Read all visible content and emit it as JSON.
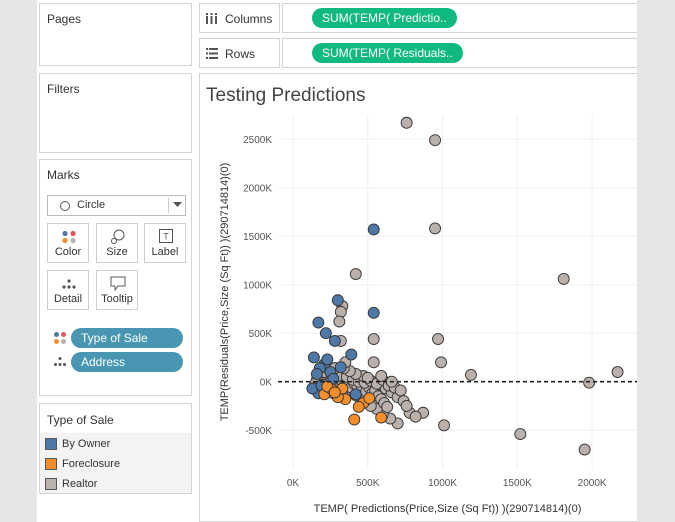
{
  "panels": {
    "pages": "Pages",
    "filters": "Filters",
    "marks": "Marks"
  },
  "shelves": {
    "columns_label": "Columns",
    "columns_pill": "SUM(TEMP( Predictio..",
    "rows_label": "Rows",
    "rows_pill": "SUM(TEMP( Residuals.."
  },
  "marks_card": {
    "mark_type": "Circle",
    "buttons": {
      "color": "Color",
      "size": "Size",
      "label": "Label",
      "detail": "Detail",
      "tooltip": "Tooltip"
    },
    "fields": {
      "color_field": "Type of Sale",
      "detail_field": "Address"
    }
  },
  "legend": {
    "title": "Type of Sale",
    "items": [
      {
        "label": "By Owner",
        "color": "#4e79a7"
      },
      {
        "label": "Foreclosure",
        "color": "#f28e2b"
      },
      {
        "label": "Realtor",
        "color": "#bab0ac"
      }
    ]
  },
  "chart_data": {
    "type": "scatter",
    "title": "Testing Predictions",
    "xlabel": "TEMP( Predictions(Price,Size (Sq Ft)) )(290714814)(0)",
    "ylabel": "TEMP(Residuals(Price,Size (Sq Ft)) )(290714814)(0)",
    "xlim": [
      -100000,
      2300000
    ],
    "ylim": [
      -900000,
      2750000
    ],
    "x_ticks": [
      "0K",
      "500K",
      "1000K",
      "1500K",
      "2000K"
    ],
    "y_ticks": [
      "-500K",
      "0K",
      "500K",
      "1000K",
      "1500K",
      "2000K",
      "2500K"
    ],
    "reference_line": 0,
    "series": [
      {
        "name": "Realtor",
        "color": "#bab0ac",
        "points": [
          [
            760000,
            2670000
          ],
          [
            950000,
            2490000
          ],
          [
            950000,
            1580000
          ],
          [
            420000,
            1110000
          ],
          [
            1810000,
            1060000
          ],
          [
            330000,
            780000
          ],
          [
            320000,
            720000
          ],
          [
            310000,
            620000
          ],
          [
            540000,
            440000
          ],
          [
            970000,
            440000
          ],
          [
            320000,
            420000
          ],
          [
            990000,
            200000
          ],
          [
            1190000,
            70000
          ],
          [
            2170000,
            100000
          ],
          [
            1980000,
            -10000
          ],
          [
            1520000,
            -540000
          ],
          [
            1950000,
            -700000
          ],
          [
            1010000,
            -450000
          ],
          [
            870000,
            -320000
          ],
          [
            780000,
            -320000
          ],
          [
            820000,
            -360000
          ],
          [
            700000,
            -430000
          ],
          [
            650000,
            -380000
          ],
          [
            600000,
            -340000
          ],
          [
            560000,
            -280000
          ],
          [
            520000,
            -250000
          ],
          [
            480000,
            -200000
          ],
          [
            450000,
            -170000
          ],
          [
            420000,
            -140000
          ],
          [
            400000,
            -120000
          ],
          [
            380000,
            -100000
          ],
          [
            360000,
            -80000
          ],
          [
            340000,
            -60000
          ],
          [
            320000,
            -40000
          ],
          [
            300000,
            -20000
          ],
          [
            280000,
            0
          ],
          [
            260000,
            10000
          ],
          [
            240000,
            30000
          ],
          [
            220000,
            50000
          ],
          [
            200000,
            70000
          ],
          [
            180000,
            40000
          ],
          [
            160000,
            20000
          ],
          [
            150000,
            -20000
          ],
          [
            170000,
            -50000
          ],
          [
            190000,
            -80000
          ],
          [
            210000,
            -110000
          ],
          [
            230000,
            -60000
          ],
          [
            250000,
            -90000
          ],
          [
            270000,
            -120000
          ],
          [
            290000,
            -80000
          ],
          [
            310000,
            -100000
          ],
          [
            330000,
            -130000
          ],
          [
            350000,
            -50000
          ],
          [
            370000,
            -30000
          ],
          [
            390000,
            -60000
          ],
          [
            410000,
            -20000
          ],
          [
            430000,
            -40000
          ],
          [
            460000,
            -70000
          ],
          [
            490000,
            -100000
          ],
          [
            510000,
            -60000
          ],
          [
            530000,
            -120000
          ],
          [
            550000,
            -90000
          ],
          [
            570000,
            -150000
          ],
          [
            590000,
            -180000
          ],
          [
            610000,
            -220000
          ],
          [
            630000,
            -260000
          ],
          [
            580000,
            -30000
          ],
          [
            620000,
            -70000
          ],
          [
            660000,
            -110000
          ],
          [
            700000,
            -160000
          ],
          [
            740000,
            -200000
          ],
          [
            300000,
            60000
          ],
          [
            260000,
            100000
          ],
          [
            240000,
            130000
          ],
          [
            220000,
            160000
          ],
          [
            280000,
            140000
          ],
          [
            360000,
            50000
          ],
          [
            400000,
            20000
          ],
          [
            440000,
            0
          ],
          [
            480000,
            -10000
          ],
          [
            520000,
            10000
          ],
          [
            560000,
            -20000
          ],
          [
            600000,
            20000
          ],
          [
            640000,
            -40000
          ],
          [
            680000,
            -60000
          ],
          [
            720000,
            -90000
          ],
          [
            200000,
            -30000
          ],
          [
            180000,
            -60000
          ],
          [
            160000,
            -90000
          ],
          [
            210000,
            100000
          ],
          [
            470000,
            60000
          ],
          [
            500000,
            40000
          ],
          [
            420000,
            80000
          ],
          [
            380000,
            110000
          ],
          [
            340000,
            140000
          ],
          [
            590000,
            60000
          ],
          [
            660000,
            0
          ],
          [
            760000,
            -250000
          ],
          [
            540000,
            200000
          ],
          [
            350000,
            200000
          ]
        ]
      },
      {
        "name": "By Owner",
        "color": "#4e79a7",
        "points": [
          [
            540000,
            1570000
          ],
          [
            300000,
            840000
          ],
          [
            540000,
            710000
          ],
          [
            170000,
            610000
          ],
          [
            220000,
            500000
          ],
          [
            280000,
            420000
          ],
          [
            390000,
            280000
          ],
          [
            140000,
            250000
          ],
          [
            210000,
            180000
          ],
          [
            180000,
            140000
          ],
          [
            250000,
            100000
          ],
          [
            160000,
            80000
          ],
          [
            150000,
            -80000
          ],
          [
            170000,
            -120000
          ],
          [
            130000,
            -70000
          ],
          [
            420000,
            -130000
          ],
          [
            320000,
            150000
          ],
          [
            230000,
            230000
          ],
          [
            190000,
            -40000
          ],
          [
            270000,
            30000
          ]
        ]
      },
      {
        "name": "Foreclosure",
        "color": "#f28e2b",
        "points": [
          [
            410000,
            -390000
          ],
          [
            590000,
            -370000
          ],
          [
            350000,
            -180000
          ],
          [
            210000,
            -130000
          ],
          [
            260000,
            -80000
          ],
          [
            300000,
            -160000
          ],
          [
            330000,
            -70000
          ],
          [
            470000,
            -220000
          ],
          [
            510000,
            -170000
          ],
          [
            230000,
            -50000
          ],
          [
            280000,
            -110000
          ],
          [
            440000,
            -260000
          ]
        ]
      }
    ]
  }
}
